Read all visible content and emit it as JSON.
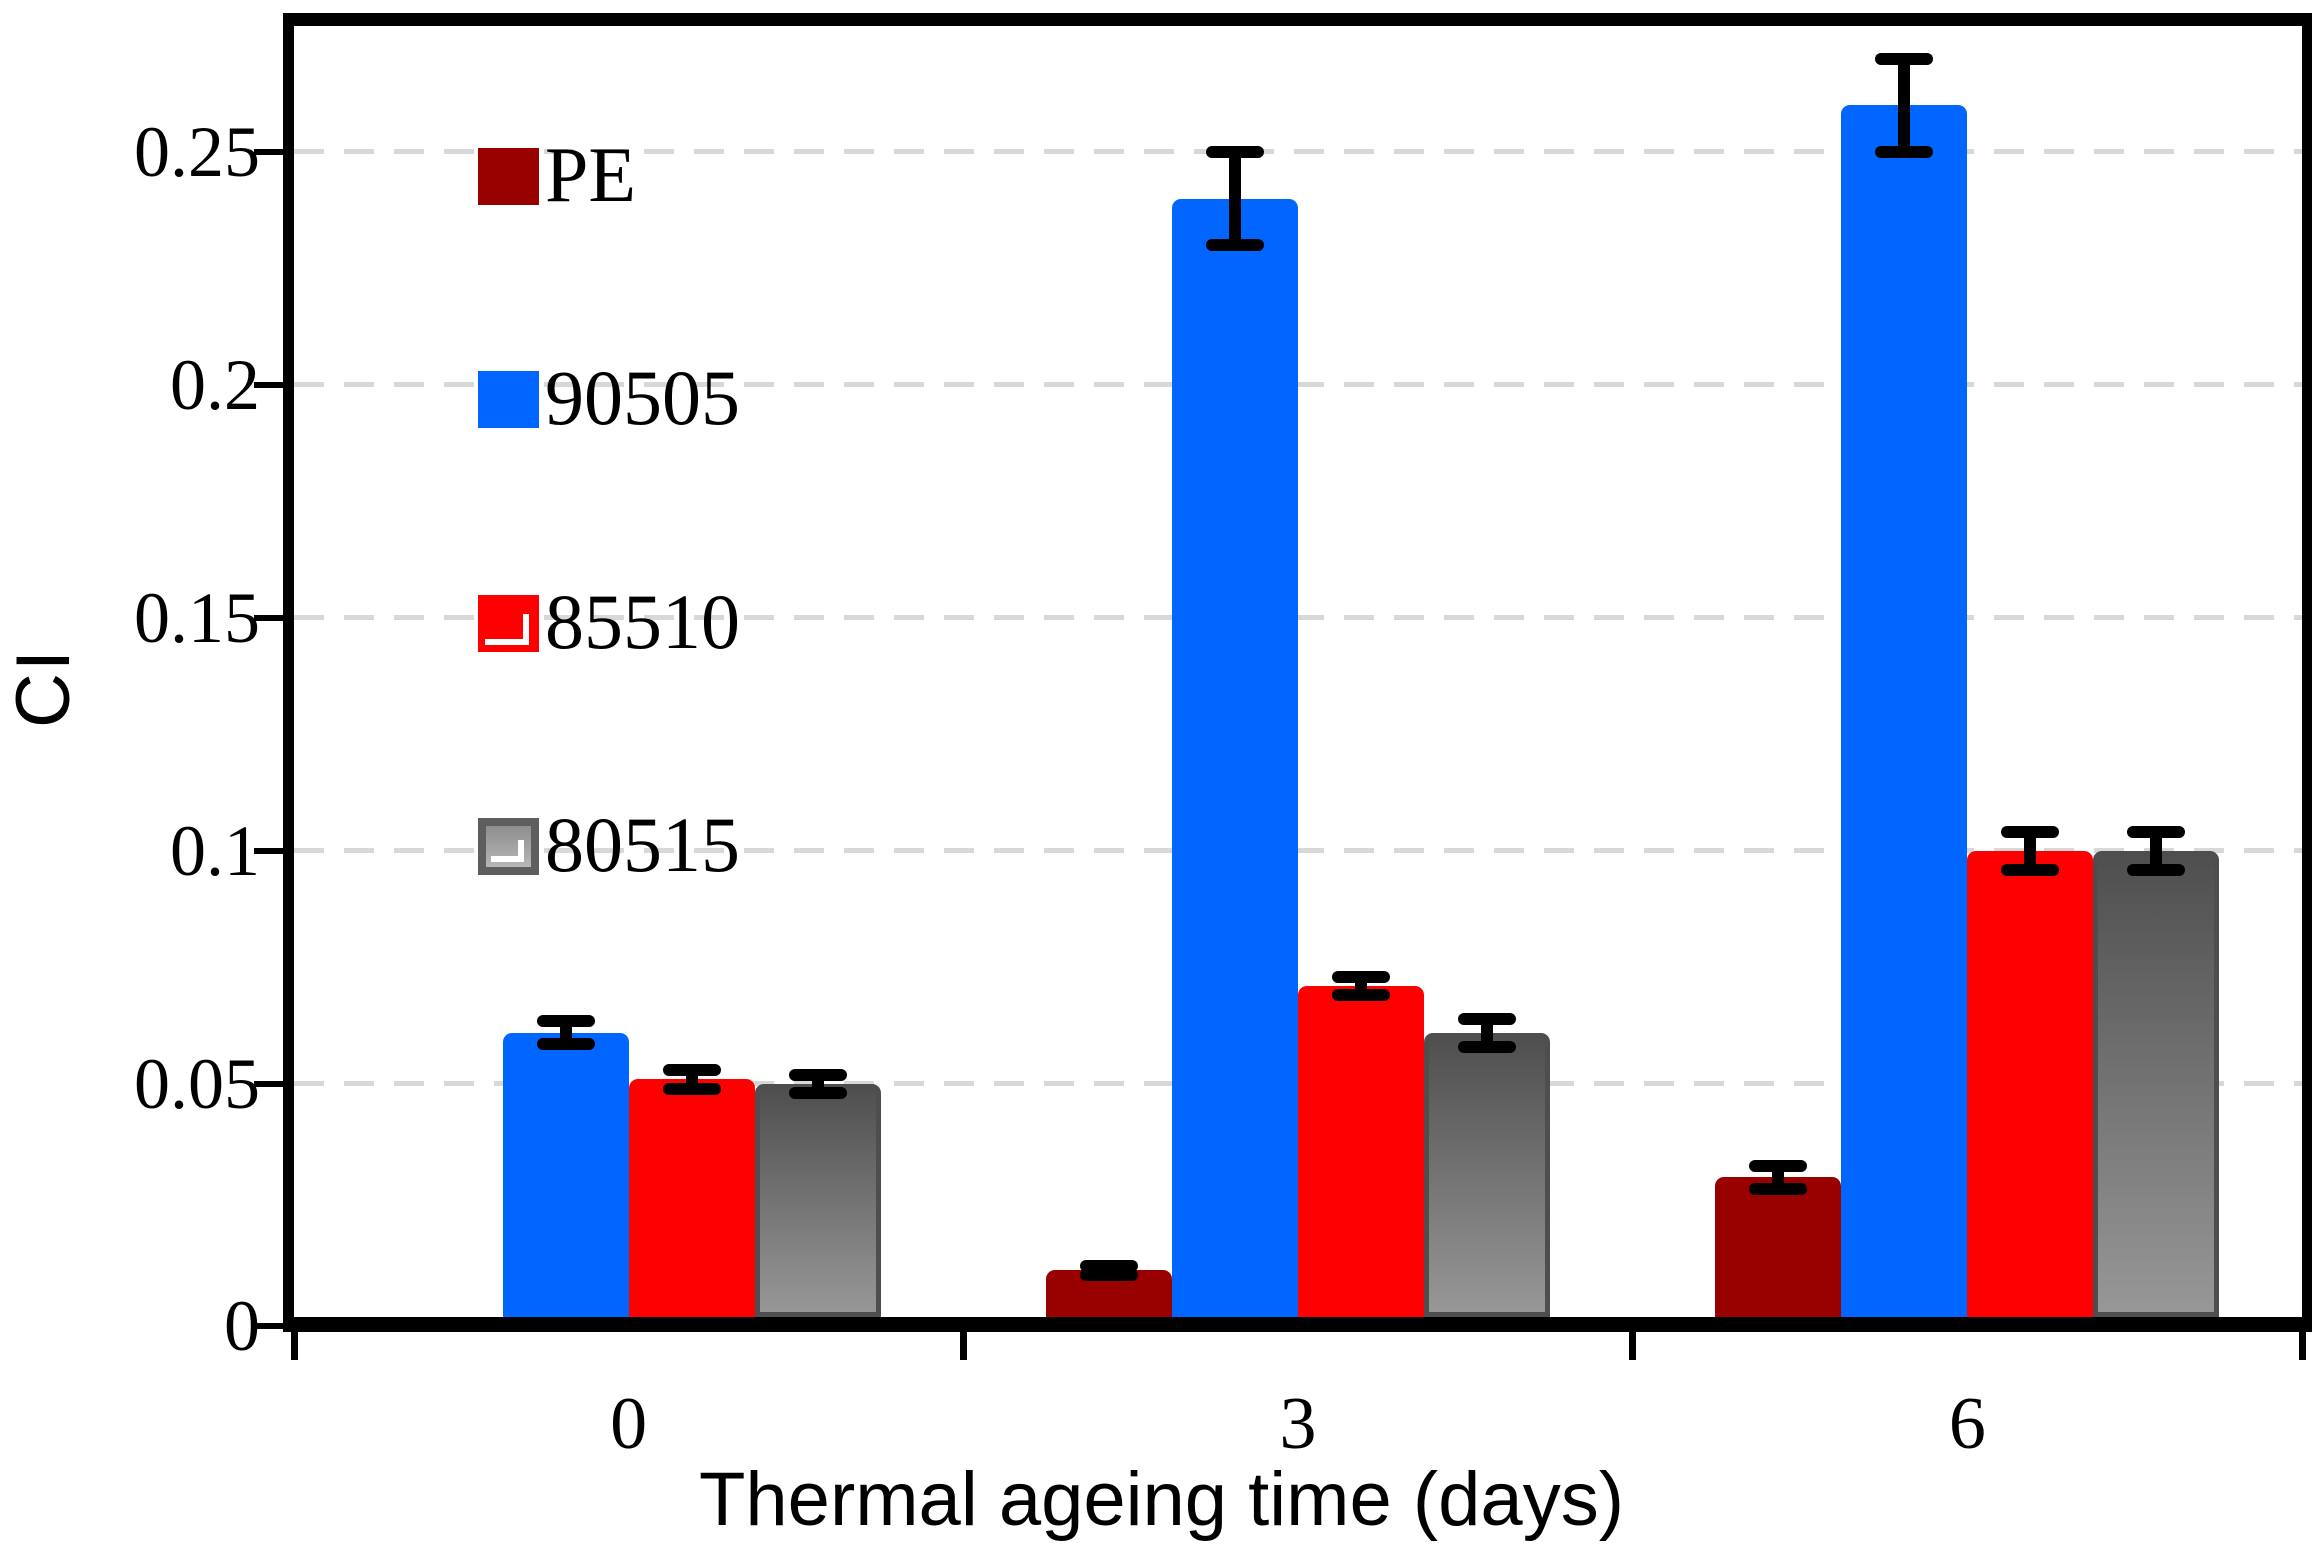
{
  "chart_data": {
    "type": "bar",
    "title": "",
    "xlabel": "Thermal ageing time (days)",
    "ylabel": "CI",
    "categories": [
      "0",
      "3",
      "6"
    ],
    "series": [
      {
        "name": "PE",
        "color": "#990000",
        "values": [
          0,
          0.01,
          0.03
        ],
        "errors": [
          0,
          0.001,
          0.0025
        ]
      },
      {
        "name": "90505",
        "color": "#0066FF",
        "values": [
          0.061,
          0.24,
          0.26
        ],
        "errors": [
          0.0025,
          0.01,
          0.01
        ]
      },
      {
        "name": "85510",
        "color": "#FF0000",
        "values": [
          0.051,
          0.071,
          0.1
        ],
        "errors": [
          0.002,
          0.002,
          0.004
        ]
      },
      {
        "name": "80515",
        "color": "gradient",
        "gradient_top": "#4f4f4f",
        "gradient_bottom": "#979797",
        "border_color": "#4e4e4e",
        "values": [
          0.05,
          0.061,
          0.1
        ],
        "errors": [
          0.002,
          0.003,
          0.004
        ]
      }
    ],
    "y_ticks": [
      {
        "label": "0",
        "value": 0
      },
      {
        "label": "0.05",
        "value": 0.05
      },
      {
        "label": "0.1",
        "value": 0.1
      },
      {
        "label": "0.15",
        "value": 0.15
      },
      {
        "label": "0.2",
        "value": 0.2
      },
      {
        "label": "0.25",
        "value": 0.25
      }
    ],
    "ylim": [
      0,
      0.277
    ],
    "grid": "horizontal dashed light-gray every 0.05",
    "legend_position": "inside-top-left",
    "legend_swatch_highlight": "white corner L on 85510 and 80515 swatches",
    "error_bars": true,
    "gridline_color": "#d8d8d8",
    "axis_color": "#000000",
    "background_color": "#ffffff"
  }
}
